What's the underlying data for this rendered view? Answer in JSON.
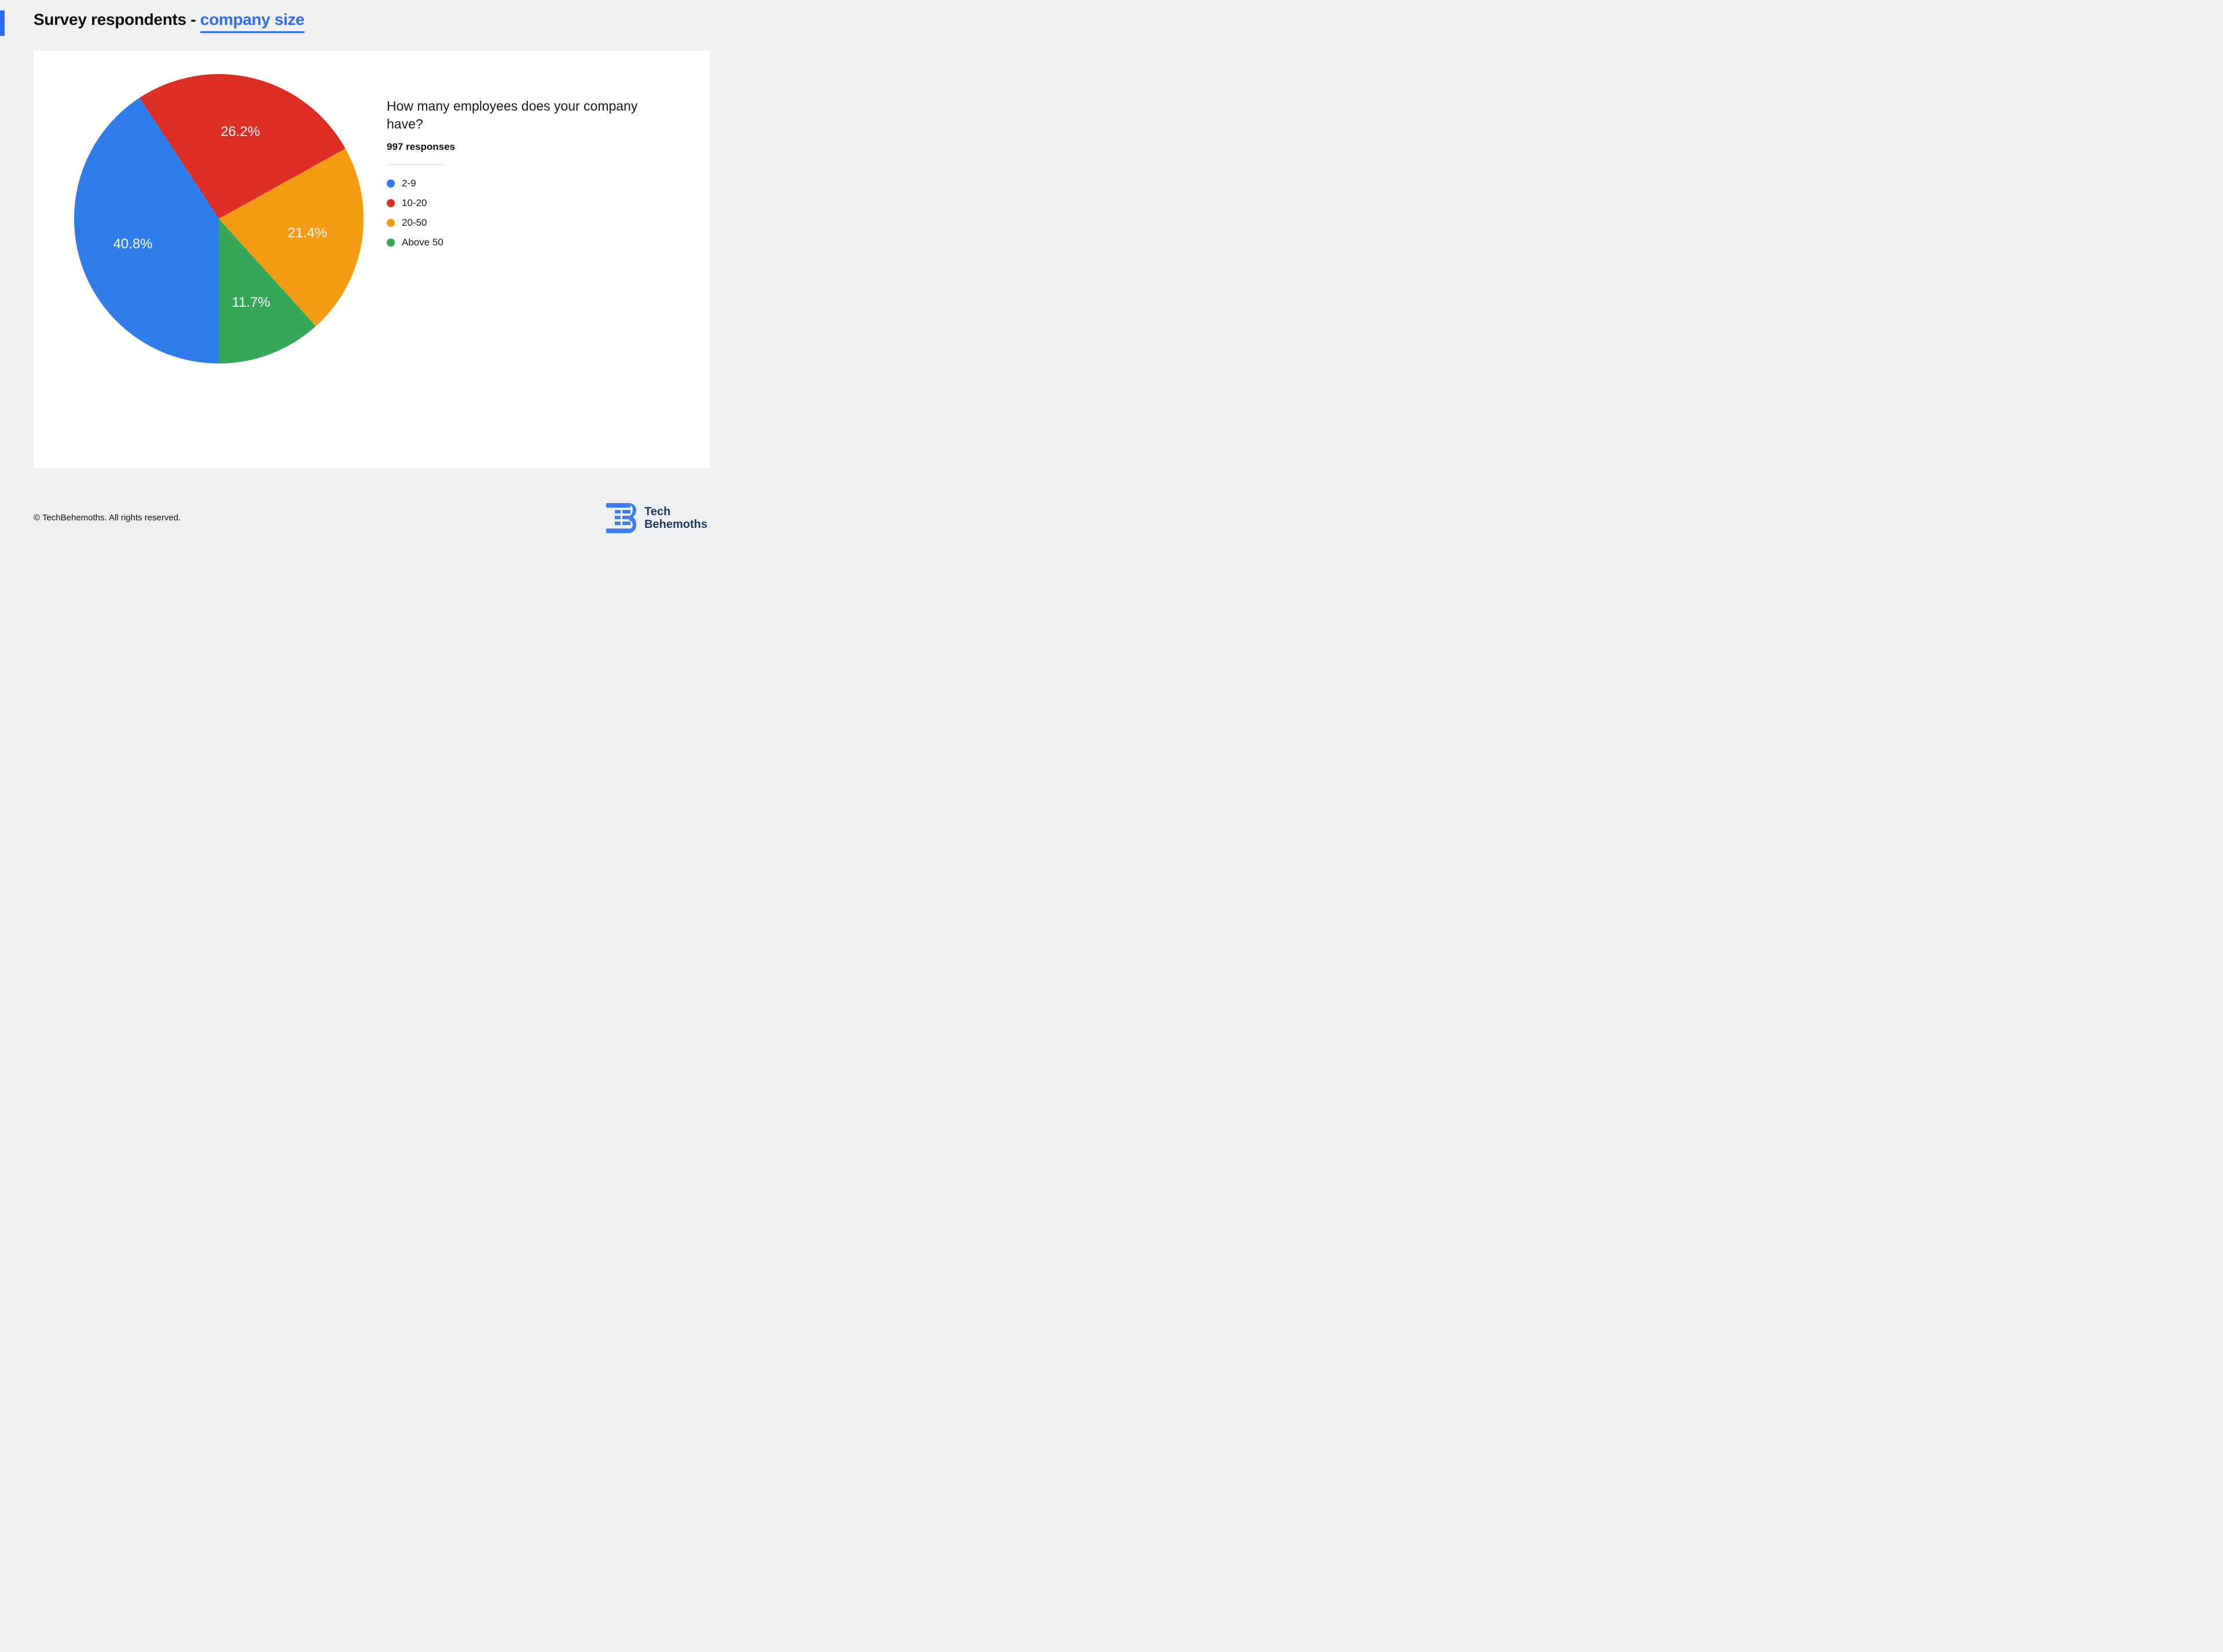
{
  "title_prefix": "Survey respondents - ",
  "title_emph": "company size",
  "chart": {
    "type": "pie",
    "question": "How many employees does your company have?",
    "responses_label": "997 responses",
    "start_angle_deg": 90,
    "background_color": "#ffffff",
    "page_background": "#eef0f2",
    "accent_color": "#2f6bff",
    "label_color": "#ffffff",
    "label_fontsize": 24,
    "question_fontsize": 23,
    "slices": [
      {
        "label": "2-9",
        "value": 40.8,
        "color": "#2f7ced",
        "display": "40.8%"
      },
      {
        "label": "10-20",
        "value": 26.2,
        "color": "#dd2e25",
        "display": "26.2%"
      },
      {
        "label": "20-50",
        "value": 21.4,
        "color": "#f39b13",
        "display": "21.4%"
      },
      {
        "label": "Above 50",
        "value": 11.7,
        "color": "#36a756",
        "display": "11.7%"
      }
    ]
  },
  "footer": "© TechBehemoths. All rights reserved.",
  "brand": {
    "line1": "Tech",
    "line2": "Behemoths",
    "color": "#1e3a5f",
    "icon_color": "#3f7df5"
  }
}
